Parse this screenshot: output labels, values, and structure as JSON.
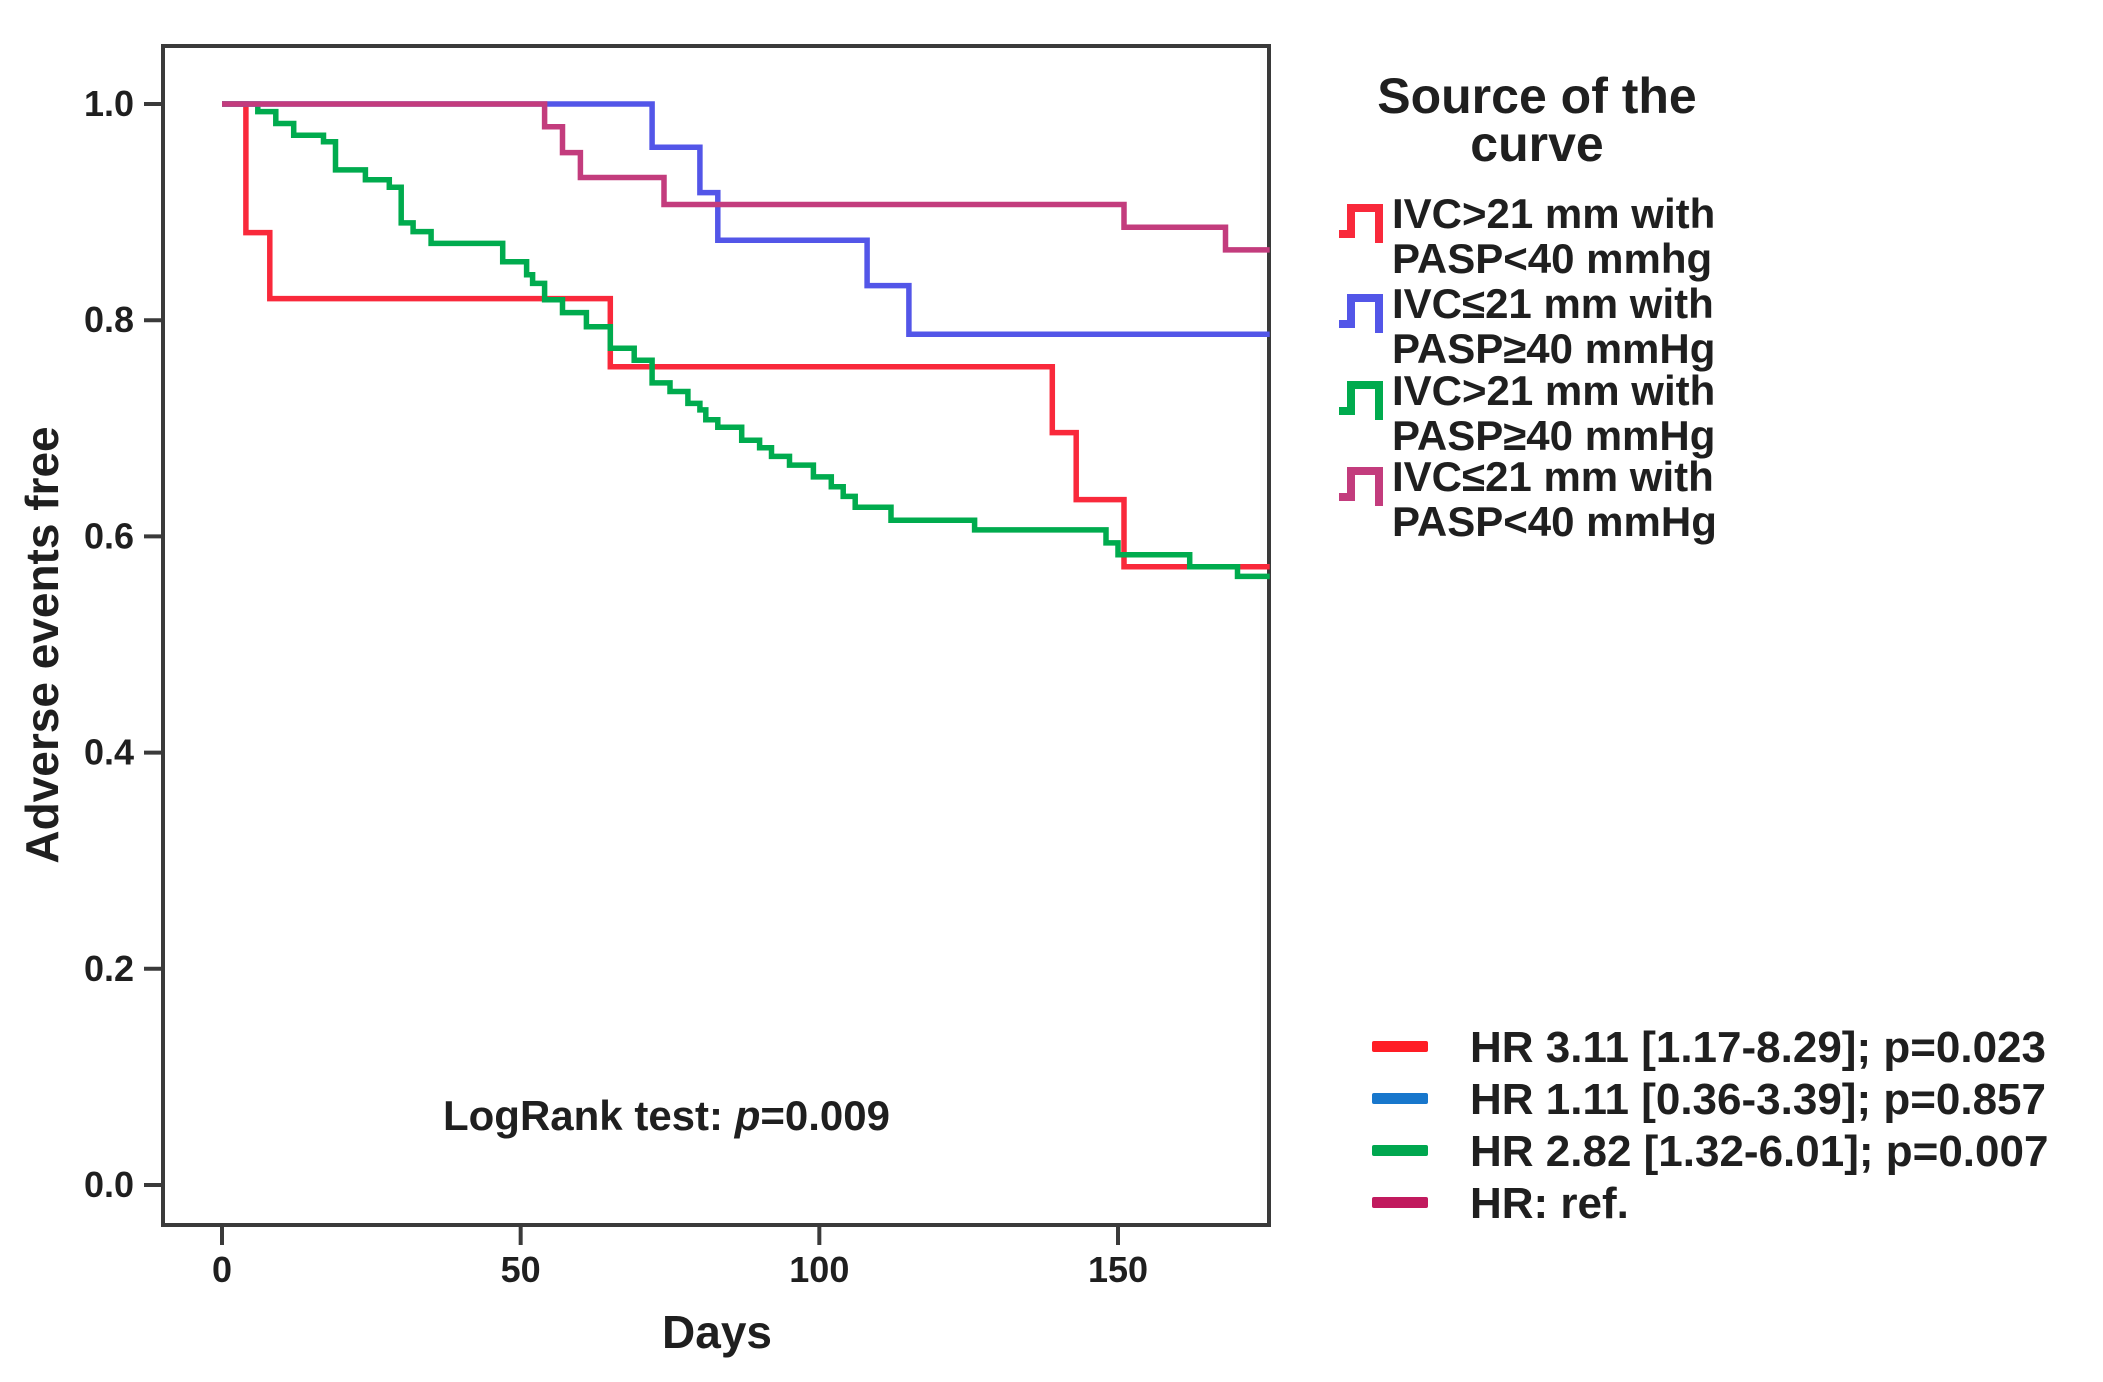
{
  "chart_data": {
    "type": "line",
    "subtype": "kaplan-meier-step-curves",
    "title": "",
    "xlabel": "Days",
    "ylabel": "Adverse events free",
    "xlim": [
      0,
      175
    ],
    "ylim": [
      0.0,
      1.0
    ],
    "x_ticks": [
      0,
      50,
      100,
      150
    ],
    "y_tick_values": [
      1.0,
      0.8,
      0.6,
      0.4,
      0.2,
      0.0
    ],
    "x_end_day": 175.4,
    "grid": "off",
    "legend_position": "right",
    "annotation": "LogRank test: p=0.009",
    "series": [
      {
        "name": "IVC>21 mm with PASP<40 mmhg",
        "color": "#F9293B",
        "hr": "HR 3.11 [1.17-8.29]; p=0.023",
        "points": [
          [
            0,
            1.0
          ],
          [
            4,
            0.881
          ],
          [
            8,
            0.82
          ],
          [
            65,
            0.757
          ],
          [
            139,
            0.696
          ],
          [
            143,
            0.634
          ],
          [
            151,
            0.572
          ]
        ]
      },
      {
        "name": "IVC≤21 mm with PASP≥40 mmHg",
        "color": "#5356E8",
        "hr": "HR 1.11 [0.36-3.39]; p=0.857",
        "points": [
          [
            0,
            1.0
          ],
          [
            72,
            0.96
          ],
          [
            80,
            0.918
          ],
          [
            83,
            0.874
          ],
          [
            108,
            0.832
          ],
          [
            115,
            0.787
          ]
        ]
      },
      {
        "name": "IVC>21 mm with PASP≥40 mmHg",
        "color": "#00AB4E",
        "hr": "HR 2.82 [1.32-6.01]; p=0.007",
        "points": [
          [
            0,
            1.0
          ],
          [
            6,
            0.993
          ],
          [
            9,
            0.982
          ],
          [
            12,
            0.971
          ],
          [
            17,
            0.965
          ],
          [
            19,
            0.939
          ],
          [
            24,
            0.93
          ],
          [
            28,
            0.923
          ],
          [
            30,
            0.89
          ],
          [
            32,
            0.882
          ],
          [
            35,
            0.871
          ],
          [
            47,
            0.854
          ],
          [
            51,
            0.842
          ],
          [
            52,
            0.834
          ],
          [
            54,
            0.819
          ],
          [
            57,
            0.807
          ],
          [
            61,
            0.794
          ],
          [
            65,
            0.774
          ],
          [
            69,
            0.763
          ],
          [
            72,
            0.742
          ],
          [
            75,
            0.734
          ],
          [
            78,
            0.723
          ],
          [
            80,
            0.717
          ],
          [
            81,
            0.708
          ],
          [
            83,
            0.701
          ],
          [
            87,
            0.689
          ],
          [
            90,
            0.682
          ],
          [
            92,
            0.674
          ],
          [
            95,
            0.666
          ],
          [
            99,
            0.655
          ],
          [
            102,
            0.646
          ],
          [
            104,
            0.637
          ],
          [
            106,
            0.627
          ],
          [
            112,
            0.615
          ],
          [
            126,
            0.606
          ],
          [
            148,
            0.594
          ],
          [
            150,
            0.583
          ],
          [
            162,
            0.572
          ],
          [
            170,
            0.563
          ]
        ]
      },
      {
        "name": "IVC≤21 mm with PASP<40 mmHg",
        "color": "#C33C7D",
        "hr": "HR: ref.",
        "points": [
          [
            0,
            1.0
          ],
          [
            54,
            0.979
          ],
          [
            57,
            0.955
          ],
          [
            60,
            0.932
          ],
          [
            74,
            0.907
          ],
          [
            151,
            0.886
          ],
          [
            168,
            0.865
          ]
        ]
      }
    ]
  },
  "axes": {
    "x_tick_labels": [
      "0",
      "50",
      "100",
      "150"
    ],
    "y_tick_labels": [
      "1.0",
      "0.8",
      "0.6",
      "0.4",
      "0.2",
      "0.0"
    ],
    "x_title": "Days",
    "y_title": "Adverse events free"
  },
  "legend": {
    "title_line1": "Source of the",
    "title_line2": "curve",
    "entries": [
      {
        "label_line1": "IVC>21 mm with",
        "label_line2": "PASP<40 mmhg",
        "color": "#F9293B"
      },
      {
        "label_line1": "IVC≤21 mm with",
        "label_line2": "PASP≥40 mmHg",
        "color": "#5356E8"
      },
      {
        "label_line1": "IVC>21 mm with",
        "label_line2": "PASP≥40 mmHg",
        "color": "#00AB4E"
      },
      {
        "label_line1": "IVC≤21 mm with",
        "label_line2": "PASP<40 mmHg",
        "color": "#C33C7D"
      }
    ]
  },
  "hr_annotations": [
    {
      "text": "HR 3.11 [1.17-8.29]; p=0.023",
      "color": "#FF1D25"
    },
    {
      "text": "HR 1.11 [0.36-3.39]; p=0.857",
      "color": "#1877CC"
    },
    {
      "text": "HR 2.82 [1.32-6.01]; p=0.007",
      "color": "#00A74F"
    },
    {
      "text": "HR: ref.",
      "color": "#C11A5E"
    }
  ],
  "annotation": {
    "prefix": "LogRank test: ",
    "p_italic": "p",
    "suffix": "=0.009"
  },
  "colors": {
    "axis": "#3A3A3A",
    "background": "#FFFFFF"
  }
}
